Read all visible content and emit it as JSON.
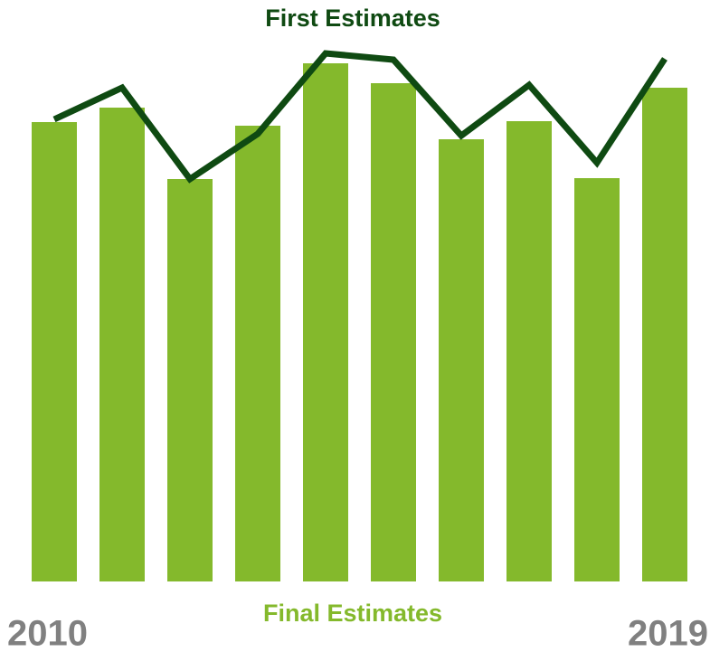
{
  "chart_data": {
    "type": "bar-line",
    "categories": [
      "2010",
      null,
      null,
      null,
      null,
      null,
      null,
      null,
      null,
      "2019"
    ],
    "series": [
      {
        "name": "Final Estimates",
        "color": "#84b92c",
        "type": "bar",
        "values": [
          508,
          524,
          445,
          504,
          573,
          551,
          489,
          509,
          446,
          546
        ]
      },
      {
        "name": "First Estimates",
        "color": "#0f4a12",
        "type": "line",
        "values": [
          511,
          546,
          445,
          495,
          584,
          577,
          493,
          549,
          463,
          578
        ]
      }
    ],
    "ylim": [
      0,
      600
    ]
  }
}
